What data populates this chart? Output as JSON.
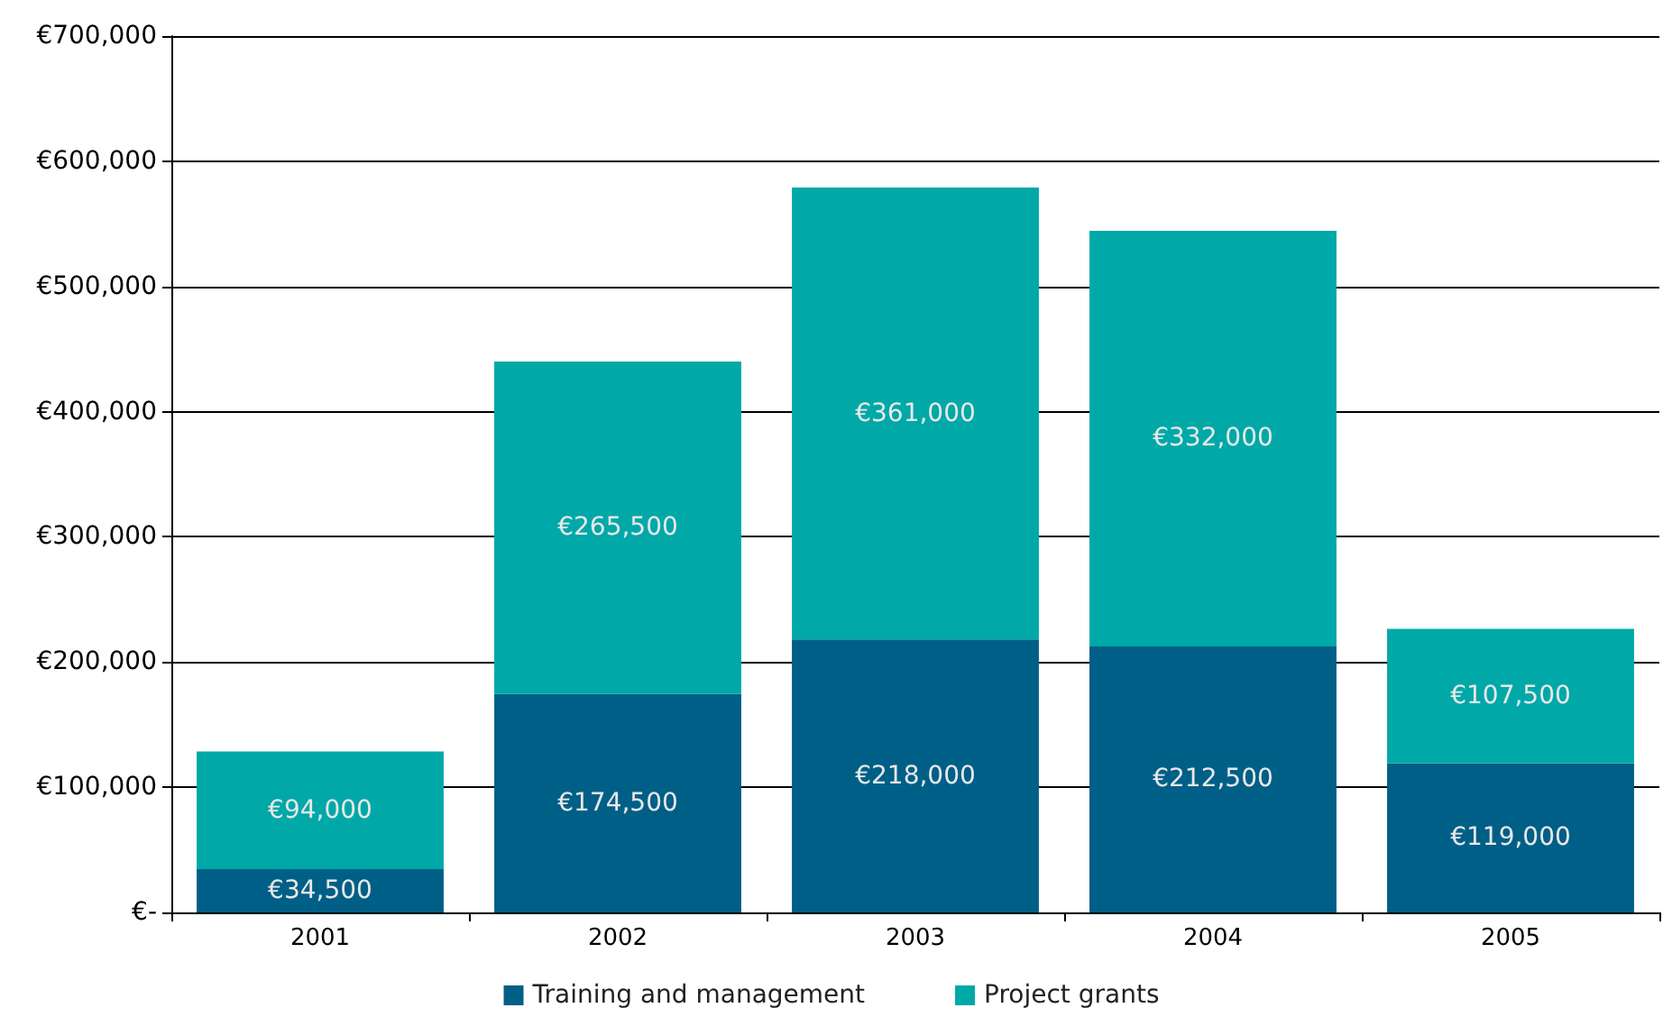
{
  "chart_data": {
    "type": "bar",
    "stacked": true,
    "categories": [
      "2001",
      "2002",
      "2003",
      "2004",
      "2005"
    ],
    "series": [
      {
        "name": "Training and management",
        "color": "#005f87",
        "values": [
          34500,
          174500,
          218000,
          212500,
          119000
        ],
        "value_labels": [
          "€34,500",
          "€174,500",
          "€218,000",
          "€212,500",
          "€119,000"
        ]
      },
      {
        "name": "Project grants",
        "color": "#00a8a8",
        "values": [
          94000,
          265500,
          361000,
          332000,
          107500
        ],
        "value_labels": [
          "€94,000",
          "€265,500",
          "€361,000",
          "€332,000",
          "€107,500"
        ]
      }
    ],
    "ylim": [
      0,
      700000
    ],
    "yticks": [
      {
        "value": 0,
        "label": "€-"
      },
      {
        "value": 100000,
        "label": "€100,000"
      },
      {
        "value": 200000,
        "label": "€200,000"
      },
      {
        "value": 300000,
        "label": "€300,000"
      },
      {
        "value": 400000,
        "label": "€400,000"
      },
      {
        "value": 500000,
        "label": "€500,000"
      },
      {
        "value": 600000,
        "label": "€600,000"
      },
      {
        "value": 700000,
        "label": "€700,000"
      }
    ],
    "grid": "y",
    "legend": "bottom"
  }
}
